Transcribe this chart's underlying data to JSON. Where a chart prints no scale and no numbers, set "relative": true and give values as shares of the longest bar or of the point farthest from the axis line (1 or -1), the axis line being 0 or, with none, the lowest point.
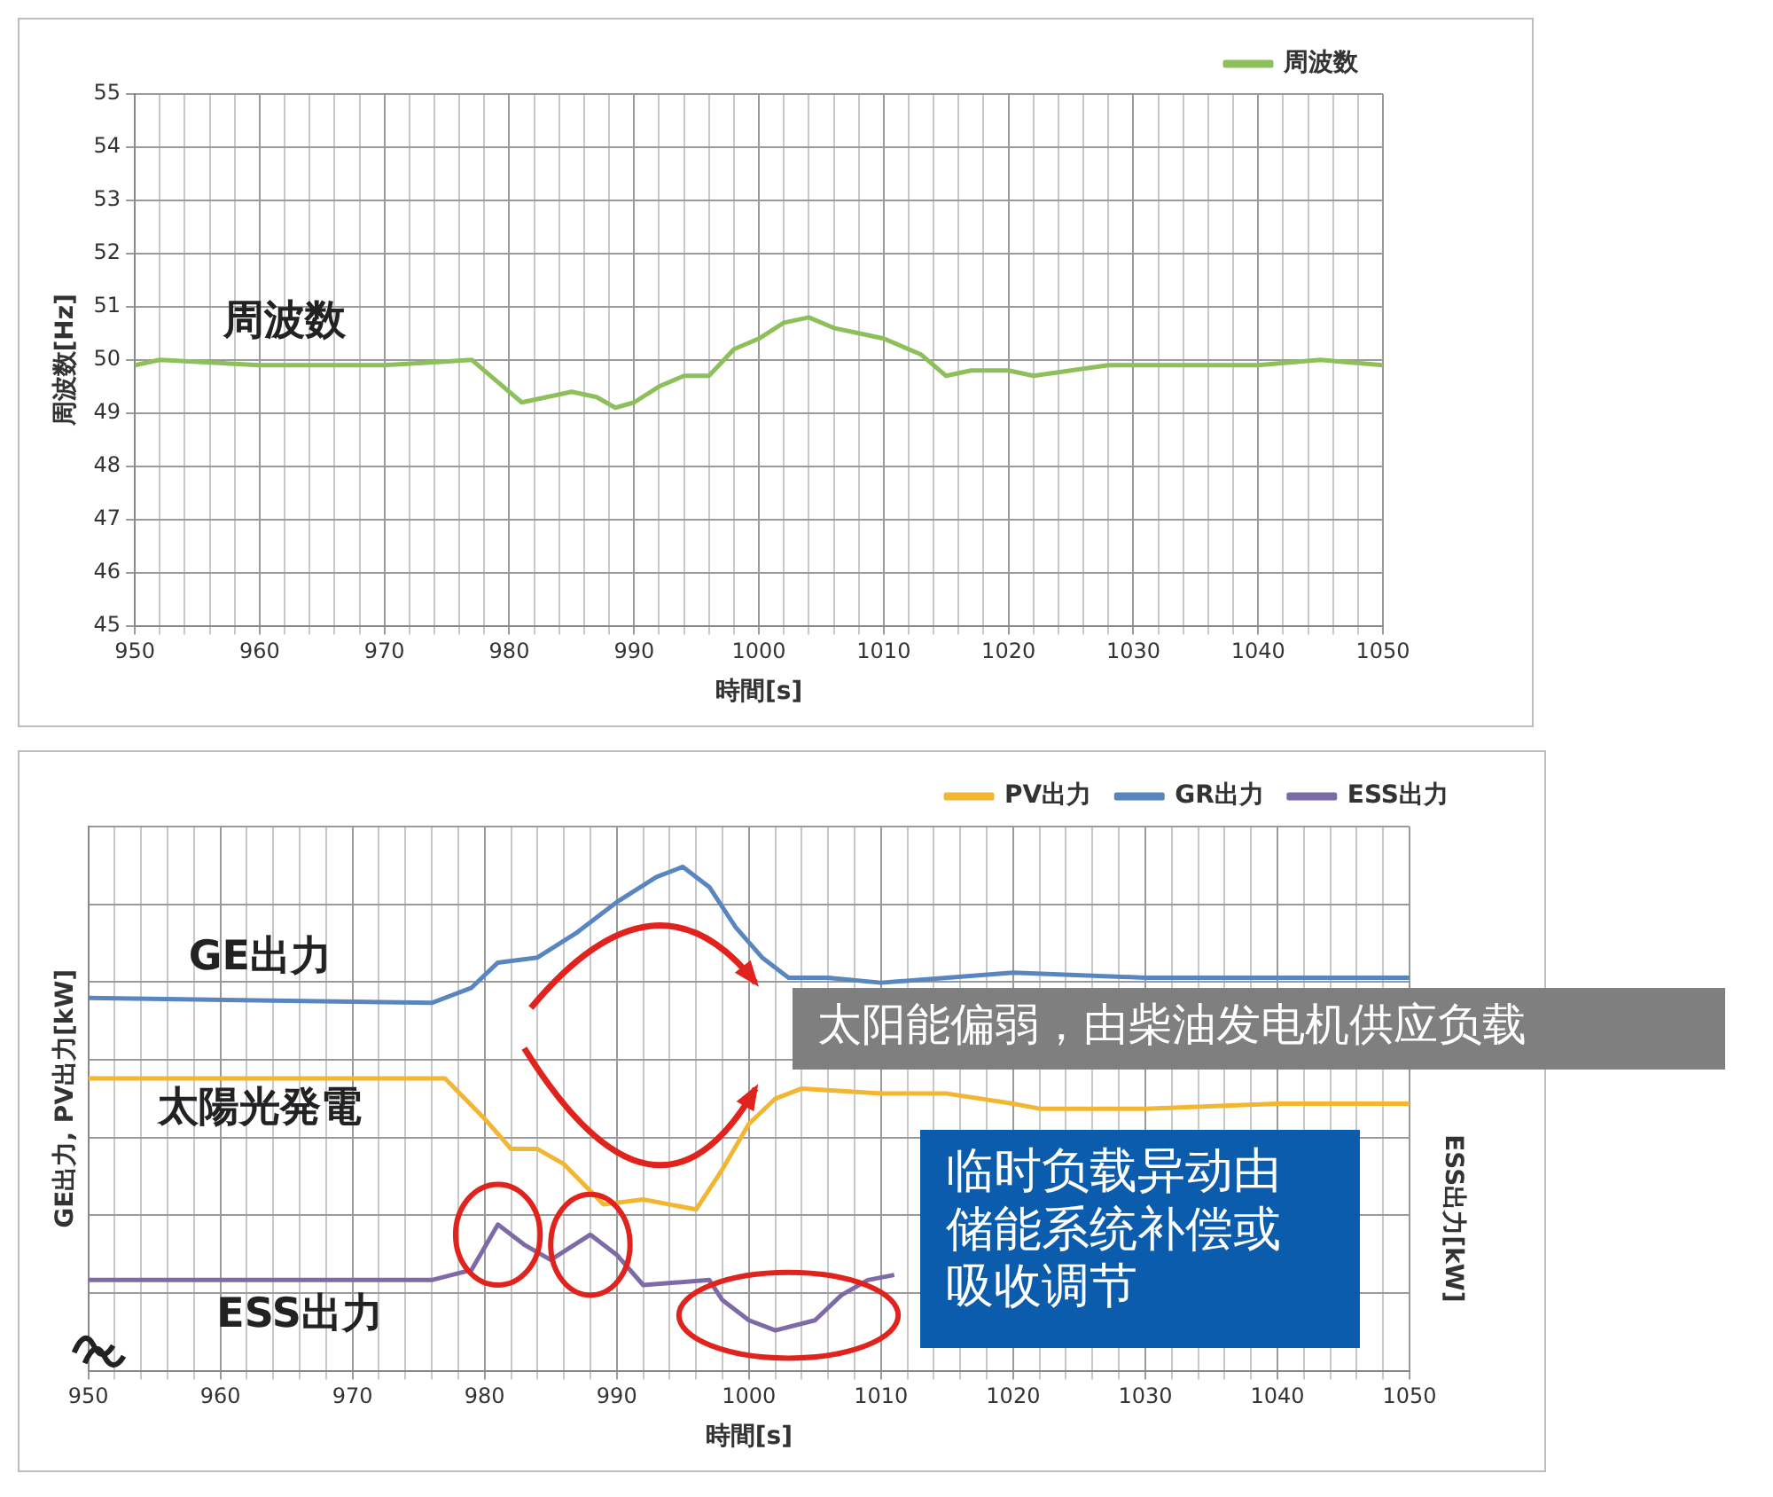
{
  "chart_data": [
    {
      "type": "line",
      "xlabel": "時間[s]",
      "ylabel": "周波数[Hz]",
      "xlim": [
        950,
        1050
      ],
      "ylim": [
        45,
        55
      ],
      "xticks": [
        950,
        {
          "value": 952,
          "label": null
        },
        {
          "value": 954,
          "label": null
        },
        {
          "value": 956,
          "label": null
        },
        {
          "value": 958,
          "label": null
        },
        960,
        {
          "value": 962,
          "label": null
        },
        {
          "value": 964,
          "label": null
        },
        {
          "value": 966,
          "label": null
        },
        {
          "value": 968,
          "label": null
        },
        970,
        {
          "value": 972,
          "label": null
        },
        {
          "value": 974,
          "label": null
        },
        {
          "value": 976,
          "label": null
        },
        {
          "value": 978,
          "label": null
        },
        980,
        {
          "value": 982,
          "label": null
        },
        {
          "value": 984,
          "label": null
        },
        {
          "value": 986,
          "label": null
        },
        {
          "value": 988,
          "label": null
        },
        990,
        {
          "value": 992,
          "label": null
        },
        {
          "value": 994,
          "label": null
        },
        {
          "value": 996,
          "label": null
        },
        {
          "value": 998,
          "label": null
        },
        1000,
        {
          "value": 1002,
          "label": null
        },
        {
          "value": 1004,
          "label": null
        },
        {
          "value": 1006,
          "label": null
        },
        {
          "value": 1008,
          "label": null
        },
        1010,
        {
          "value": 1012,
          "label": null
        },
        {
          "value": 1014,
          "label": null
        },
        {
          "value": 1016,
          "label": null
        },
        {
          "value": 1018,
          "label": null
        },
        1020,
        {
          "value": 1022,
          "label": null
        },
        {
          "value": 1024,
          "label": null
        },
        {
          "value": 1026,
          "label": null
        },
        {
          "value": 1028,
          "label": null
        },
        1030,
        {
          "value": 1032,
          "label": null
        },
        {
          "value": 1034,
          "label": null
        },
        {
          "value": 1036,
          "label": null
        },
        {
          "value": 1038,
          "label": null
        },
        1040,
        {
          "value": 1042,
          "label": null
        },
        {
          "value": 1044,
          "label": null
        },
        {
          "value": 1046,
          "label": null
        },
        {
          "value": 1048,
          "label": null
        },
        1050
      ],
      "yticks": [
        45,
        46,
        47,
        48,
        49,
        50,
        51,
        52,
        53,
        54,
        55
      ],
      "series": [
        {
          "name": "周波数",
          "color": "#8dbf5a",
          "x": [
            950,
            952,
            960,
            970,
            977,
            979,
            981,
            983,
            985,
            987,
            988.5,
            990,
            992,
            994,
            996,
            998,
            1000,
            1002,
            1004,
            1006,
            1008,
            1010,
            1013,
            1015,
            1017,
            1020,
            1022,
            1025,
            1028,
            1035,
            1040,
            1045,
            1050
          ],
          "values": [
            49.9,
            50.0,
            49.9,
            49.9,
            50.0,
            49.6,
            49.2,
            49.3,
            49.4,
            49.3,
            49.1,
            49.2,
            49.5,
            49.7,
            49.7,
            50.2,
            50.4,
            50.7,
            50.8,
            50.6,
            50.5,
            50.4,
            50.1,
            49.7,
            49.8,
            49.8,
            49.7,
            49.8,
            49.9,
            49.9,
            49.9,
            50.0,
            49.9
          ]
        }
      ],
      "legend": "top right",
      "grid": true,
      "annotations": [
        "周波数"
      ]
    },
    {
      "type": "line",
      "relative": true,
      "xlabel": "時間[s]",
      "ylabel": "GE出力, PV出力[kW]",
      "y2label": "ESS出力[kW]",
      "xlim": [
        950,
        1050
      ],
      "xticks": [
        950,
        {
          "value": 952,
          "label": null
        },
        {
          "value": 954,
          "label": null
        },
        {
          "value": 956,
          "label": null
        },
        {
          "value": 958,
          "label": null
        },
        960,
        {
          "value": 962,
          "label": null
        },
        {
          "value": 964,
          "label": null
        },
        {
          "value": 966,
          "label": null
        },
        {
          "value": 968,
          "label": null
        },
        970,
        {
          "value": 972,
          "label": null
        },
        {
          "value": 974,
          "label": null
        },
        {
          "value": 976,
          "label": null
        },
        {
          "value": 978,
          "label": null
        },
        980,
        {
          "value": 982,
          "label": null
        },
        {
          "value": 984,
          "label": null
        },
        {
          "value": 986,
          "label": null
        },
        {
          "value": 988,
          "label": null
        },
        990,
        {
          "value": 992,
          "label": null
        },
        {
          "value": 994,
          "label": null
        },
        {
          "value": 996,
          "label": null
        },
        {
          "value": 998,
          "label": null
        },
        1000,
        {
          "value": 1002,
          "label": null
        },
        {
          "value": 1004,
          "label": null
        },
        {
          "value": 1006,
          "label": null
        },
        {
          "value": 1008,
          "label": null
        },
        1010,
        {
          "value": 1012,
          "label": null
        },
        {
          "value": 1014,
          "label": null
        },
        {
          "value": 1016,
          "label": null
        },
        {
          "value": 1018,
          "label": null
        },
        1020,
        {
          "value": 1022,
          "label": null
        },
        {
          "value": 1024,
          "label": null
        },
        {
          "value": 1026,
          "label": null
        },
        {
          "value": 1028,
          "label": null
        },
        1030,
        {
          "value": 1032,
          "label": null
        },
        {
          "value": 1034,
          "label": null
        },
        {
          "value": 1036,
          "label": null
        },
        {
          "value": 1038,
          "label": null
        },
        1040,
        {
          "value": 1042,
          "label": null
        },
        {
          "value": 1044,
          "label": null
        },
        {
          "value": 1046,
          "label": null
        },
        {
          "value": 1048,
          "label": null
        },
        1050
      ],
      "series": [
        {
          "name": "PV出力",
          "color": "#f2b632",
          "x": [
            950,
            977,
            980,
            982,
            984,
            986,
            989,
            992,
            994,
            996,
            998,
            1000,
            1002,
            1004,
            1010,
            1015,
            1020,
            1022,
            1030,
            1040,
            1050
          ],
          "values": [
            0.58,
            0.58,
            0.5,
            0.44,
            0.44,
            0.41,
            0.33,
            0.34,
            0.33,
            0.32,
            0.4,
            0.49,
            0.54,
            0.56,
            0.55,
            0.55,
            0.53,
            0.52,
            0.52,
            0.53,
            0.53
          ]
        },
        {
          "name": "GR出力",
          "color": "#5a86c0",
          "x": [
            950,
            976,
            979,
            981,
            984,
            987,
            990,
            993,
            995,
            997,
            999,
            1001,
            1003,
            1006,
            1010,
            1015,
            1020,
            1030,
            1040,
            1050
          ],
          "values": [
            0.74,
            0.73,
            0.76,
            0.81,
            0.82,
            0.87,
            0.93,
            0.98,
            1,
            0.96,
            0.88,
            0.82,
            0.78,
            0.78,
            0.77,
            0.78,
            0.79,
            0.78,
            0.78,
            0.78
          ]
        },
        {
          "name": "ESS出力",
          "color": "#7f6aa8",
          "x": [
            950,
            976,
            979,
            981,
            983,
            985,
            988,
            990,
            992,
            997,
            998,
            1000,
            1002,
            1005,
            1007,
            1009,
            1011
          ],
          "values": [
            0.18,
            0.18,
            0.2,
            0.29,
            0.25,
            0.22,
            0.27,
            0.23,
            0.17,
            0.18,
            0.14,
            0.1,
            0.08,
            0.1,
            0.15,
            0.18,
            0.19
          ]
        }
      ],
      "legend": "top right",
      "grid": true,
      "annotations": [
        "太阳能偏弱，由柴油发电机供应负载",
        "临时负载异动由储能系统补偿或吸收调节",
        "GE出力",
        "太陽光発電",
        "ESS出力"
      ]
    }
  ]
}
